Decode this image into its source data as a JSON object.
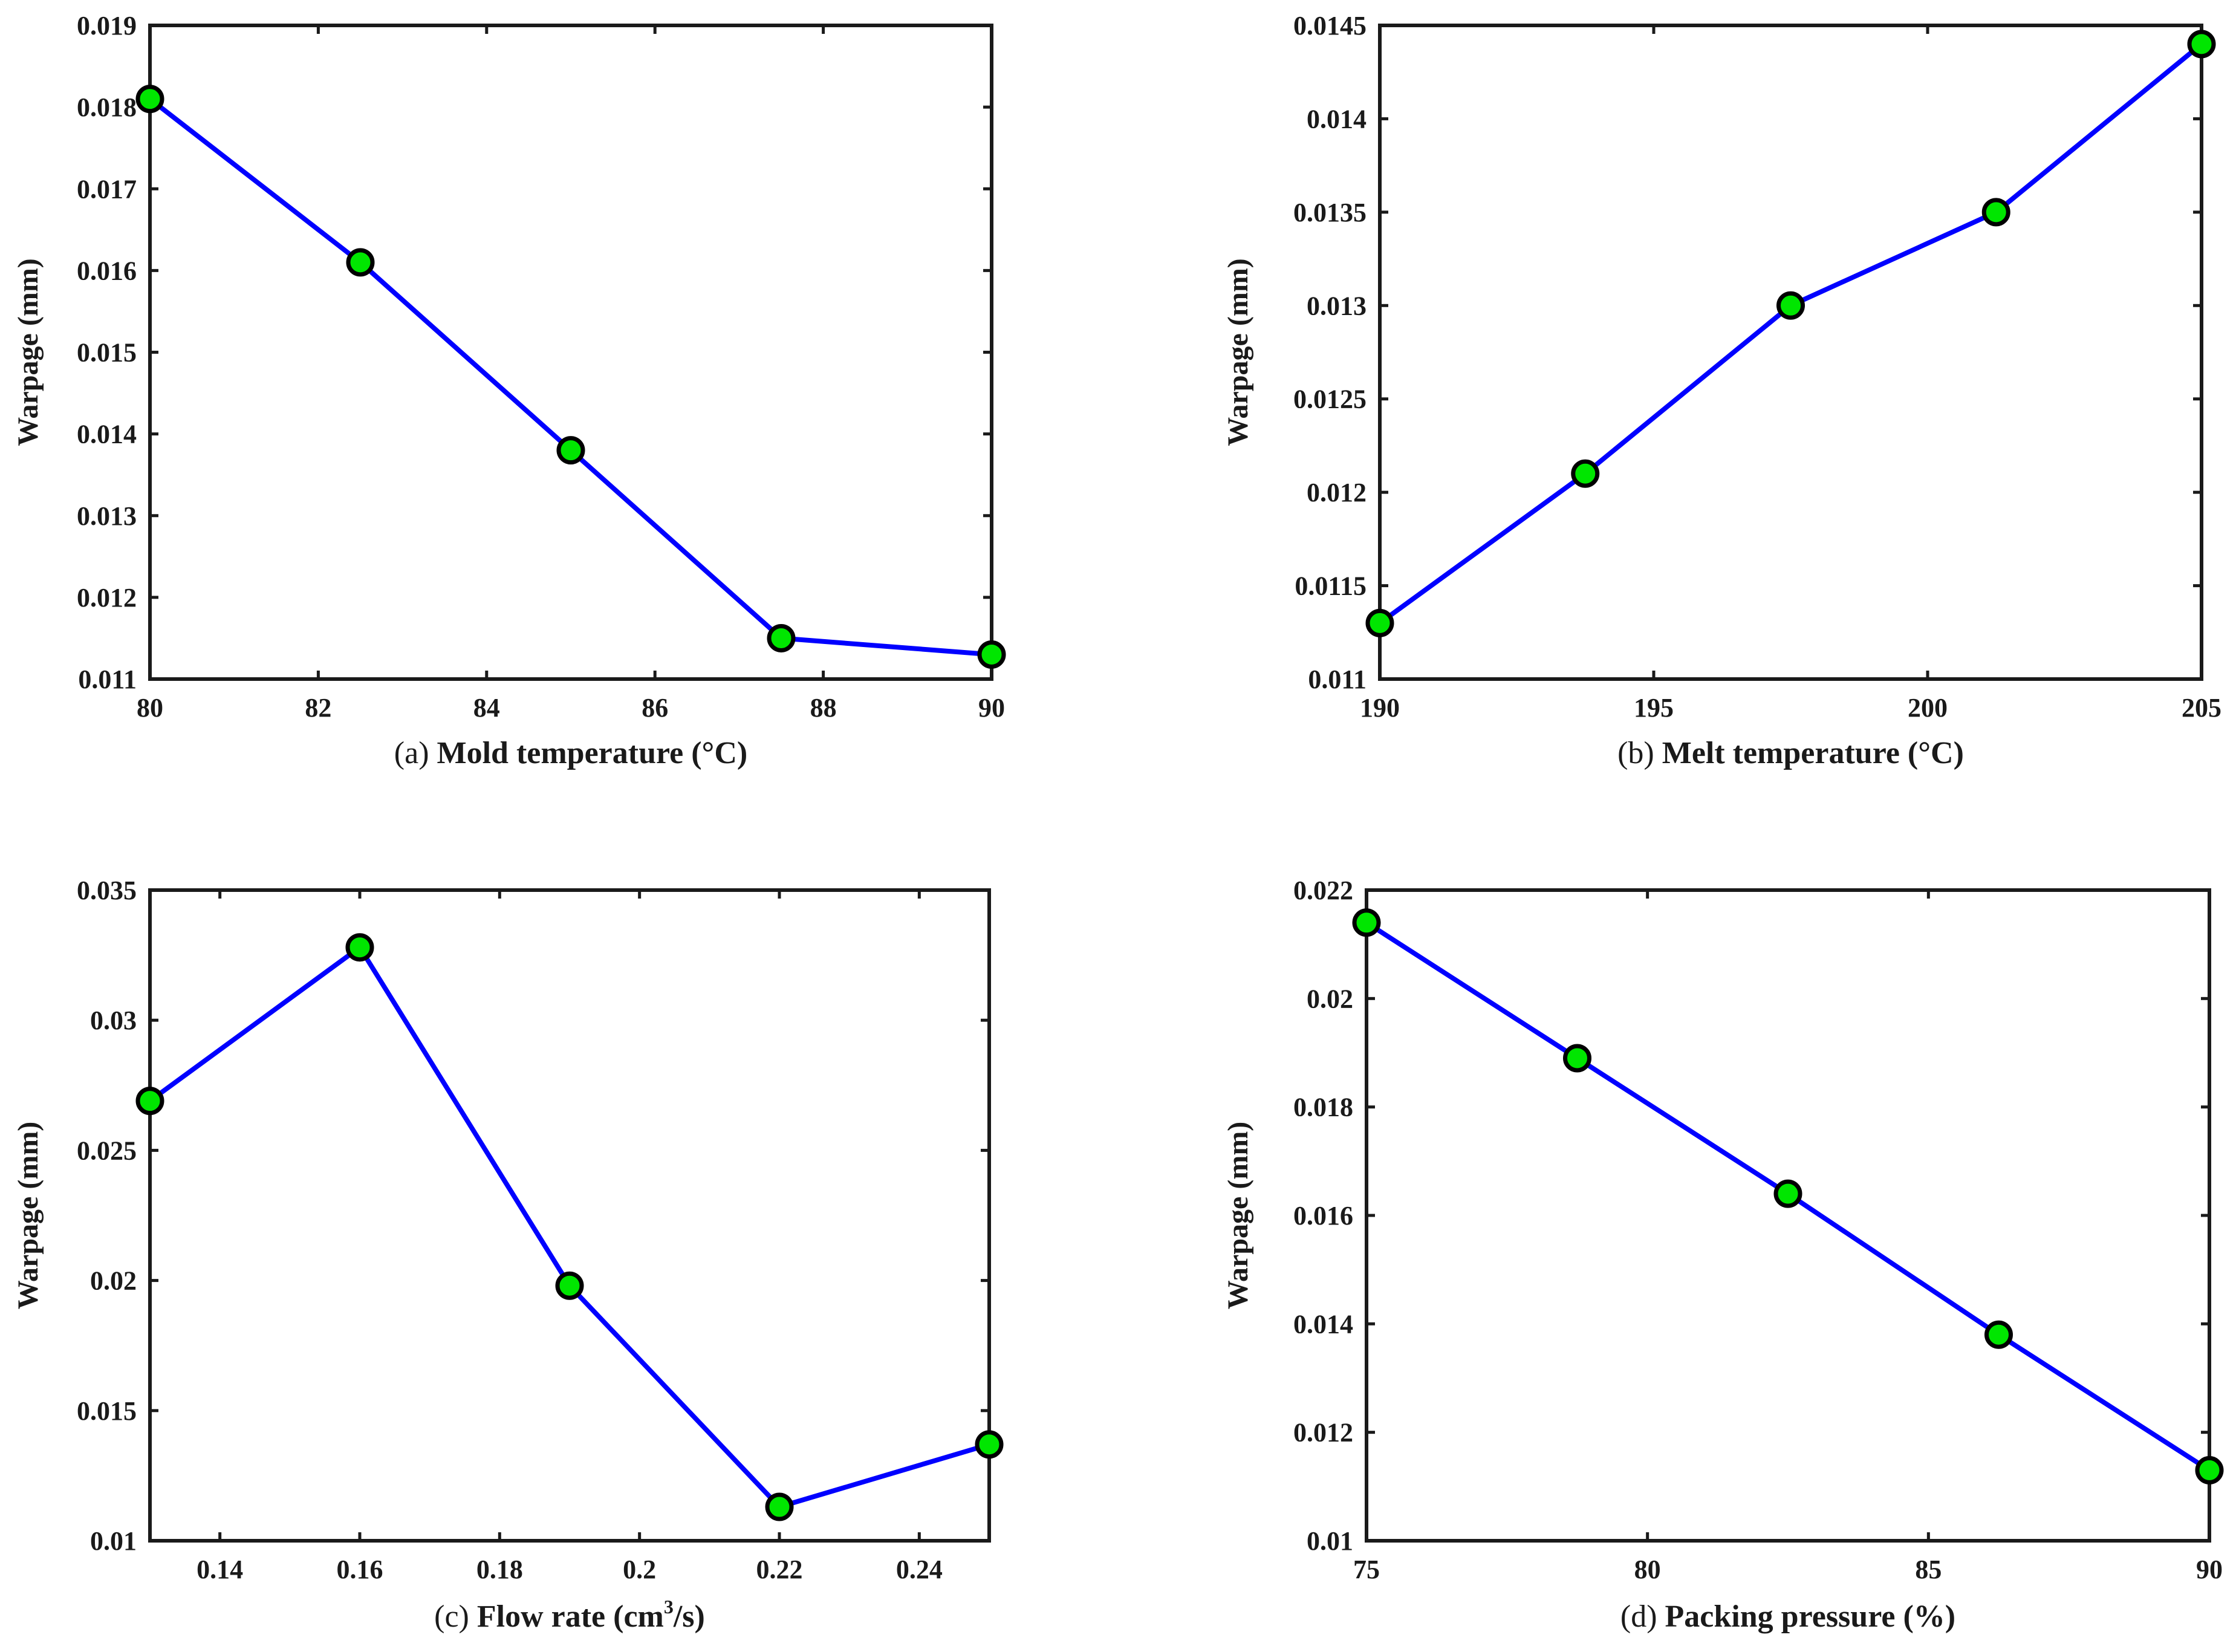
{
  "colors": {
    "line": "#0000ff",
    "marker_fill": "#00e600",
    "marker_edge": "#000000",
    "axis": "#1a1a1a"
  },
  "chart_data": [
    {
      "panel": "a",
      "type": "line",
      "caption_letter": "(a)",
      "xlabel": "Mold temperature",
      "xunit": "(°C)",
      "ylabel": "Warpage (mm)",
      "x": [
        80,
        82.5,
        85,
        87.5,
        90
      ],
      "y": [
        0.0181,
        0.0161,
        0.0138,
        0.0115,
        0.0113
      ],
      "xlim": [
        80,
        90
      ],
      "ylim": [
        0.011,
        0.019
      ],
      "xticks": [
        80,
        82,
        84,
        86,
        88,
        90
      ],
      "xtick_labels": [
        "80",
        "82",
        "84",
        "86",
        "88",
        "90"
      ],
      "yticks": [
        0.011,
        0.012,
        0.013,
        0.014,
        0.015,
        0.016,
        0.017,
        0.018,
        0.019
      ],
      "ytick_labels": [
        "0.011",
        "0.012",
        "0.013",
        "0.014",
        "0.015",
        "0.016",
        "0.017",
        "0.018",
        "0.019"
      ]
    },
    {
      "panel": "b",
      "type": "line",
      "caption_letter": "(b)",
      "xlabel": "Melt temperature",
      "xunit": "(°C)",
      "ylabel": "Warpage (mm)",
      "x": [
        190,
        193.75,
        197.5,
        201.25,
        205
      ],
      "y": [
        0.0113,
        0.0121,
        0.013,
        0.0135,
        0.0144
      ],
      "xlim": [
        190,
        205
      ],
      "ylim": [
        0.011,
        0.0145
      ],
      "xticks": [
        190,
        195,
        200,
        205
      ],
      "xtick_labels": [
        "190",
        "195",
        "200",
        "205"
      ],
      "yticks": [
        0.011,
        0.0115,
        0.012,
        0.0125,
        0.013,
        0.0135,
        0.014,
        0.0145
      ],
      "ytick_labels": [
        "0.011",
        "0.0115",
        "0.012",
        "0.0125",
        "0.013",
        "0.0135",
        "0.014",
        "0.0145"
      ]
    },
    {
      "panel": "c",
      "type": "line",
      "caption_letter": "(c)",
      "xlabel": "Flow rate",
      "xunit_pre": "(cm",
      "xunit_sup": "3",
      "xunit_post": "/s)",
      "ylabel": "Warpage (mm)",
      "x": [
        0.13,
        0.16,
        0.19,
        0.22,
        0.25
      ],
      "y": [
        0.0269,
        0.0328,
        0.0198,
        0.0113,
        0.0137
      ],
      "xlim": [
        0.13,
        0.25
      ],
      "ylim": [
        0.01,
        0.035
      ],
      "xticks": [
        0.14,
        0.16,
        0.18,
        0.2,
        0.22,
        0.24
      ],
      "xtick_labels": [
        "0.14",
        "0.16",
        "0.18",
        "0.2",
        "0.22",
        "0.24"
      ],
      "yticks": [
        0.01,
        0.015,
        0.02,
        0.025,
        0.03,
        0.035
      ],
      "ytick_labels": [
        "0.01",
        "0.015",
        "0.02",
        "0.025",
        "0.03",
        "0.035"
      ]
    },
    {
      "panel": "d",
      "type": "line",
      "caption_letter": "(d)",
      "xlabel": "Packing pressure",
      "xunit": "(%)",
      "ylabel": "Warpage (mm)",
      "x": [
        75,
        78.75,
        82.5,
        86.25,
        90
      ],
      "y": [
        0.0214,
        0.0189,
        0.0164,
        0.0138,
        0.0113
      ],
      "xlim": [
        75,
        90
      ],
      "ylim": [
        0.01,
        0.022
      ],
      "xticks": [
        75,
        80,
        85,
        90
      ],
      "xtick_labels": [
        "75",
        "80",
        "85",
        "90"
      ],
      "yticks": [
        0.01,
        0.012,
        0.014,
        0.016,
        0.018,
        0.02,
        0.022
      ],
      "ytick_labels": [
        "0.01",
        "0.012",
        "0.014",
        "0.016",
        "0.018",
        "0.02",
        "0.022"
      ]
    }
  ]
}
